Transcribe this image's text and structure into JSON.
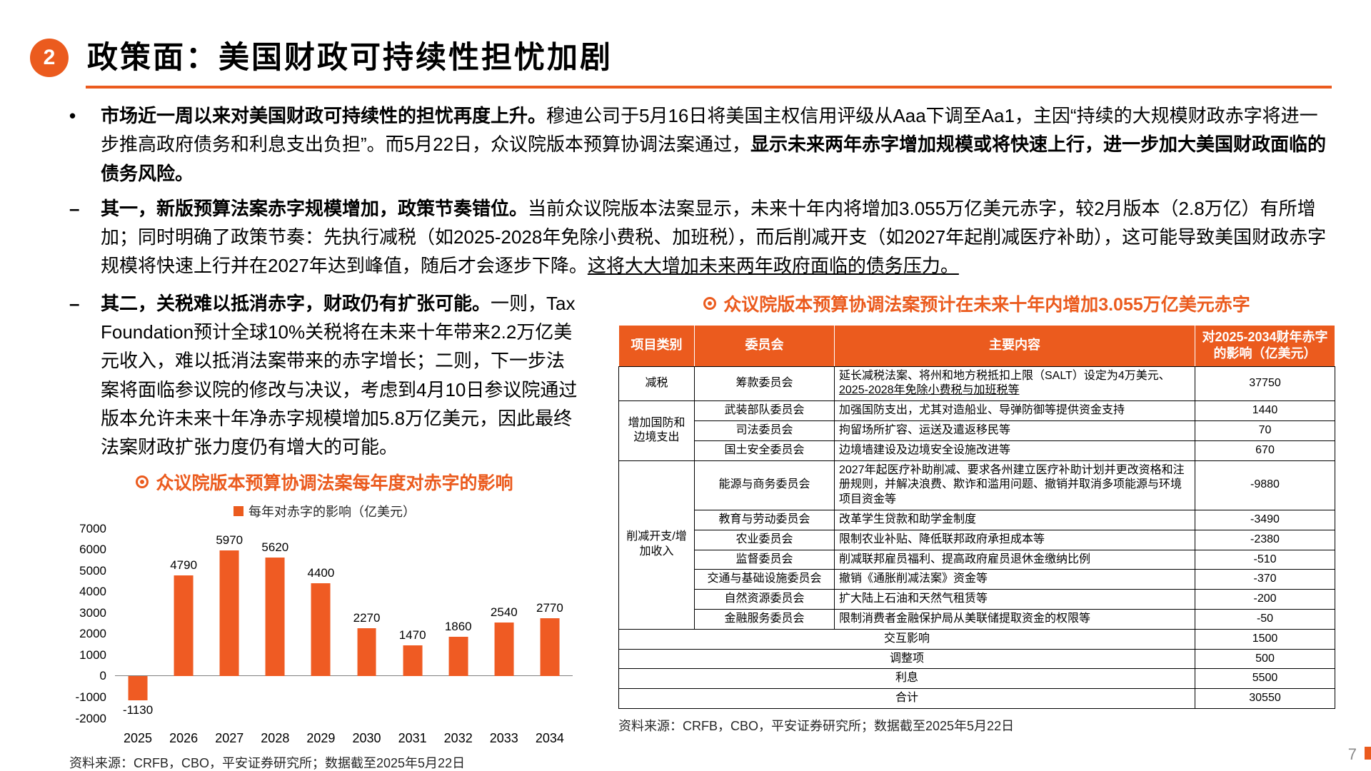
{
  "colors": {
    "accent": "#EB5B1E",
    "bar": "#EF5B23",
    "table_header_bg": "#EB5B1E"
  },
  "page_number": "7",
  "markers": {
    "bullet": "•",
    "dash": "–"
  },
  "header": {
    "badge": "2",
    "title": "政策面：美国财政可持续性担忧加剧"
  },
  "lead": {
    "bold1": "市场近一周以来对美国财政可持续性的担忧再度上升。",
    "text1": "穆迪公司于5月16日将美国主权信用评级从Aaa下调至Aa1，主因“持续的大规模财政赤字将进一步推高政府债务和利息支出负担”。而5月22日，众议院版本预算协调法案通过，",
    "bold2": "显示未来两年赤字增加规模或将快速上行，进一步加大美国财政面临的债务风险。"
  },
  "point1": {
    "bold": "其一，新版预算法案赤字规模增加，政策节奏错位。",
    "text": "当前众议院版本法案显示，未来十年内将增加3.055万亿美元赤字，较2月版本（2.8万亿）有所增加；同时明确了政策节奏：先执行减税（如2025-2028年免除小费税、加班税），而后削减开支（如2027年起削减医疗补助），这可能导致美国财政赤字规模将快速上行并在2027年达到峰值，随后才会逐步下降。",
    "underline": "这将大大增加未来两年政府面临的债务压力。"
  },
  "point2": {
    "bold": "其二，关税难以抵消赤字，财政仍有扩张可能。",
    "text": "一则，Tax Foundation预计全球10%关税将在未来十年带来2.2万亿美元收入，难以抵消法案带来的赤字增长；二则，下一步法案将面临参议院的修改与决议，考虑到4月10日参议院通过版本允许未来十年净赤字规模增加5.8万亿美元，因此最终法案财政扩张力度仍有增大的可能。"
  },
  "chart_data": {
    "type": "bar",
    "title": "众议院版本预算协调法案每年度对赤字的影响",
    "legend": "每年对赤字的影响（亿美元）",
    "categories": [
      "2025",
      "2026",
      "2027",
      "2028",
      "2029",
      "2030",
      "2031",
      "2032",
      "2033",
      "2034"
    ],
    "values": [
      -1130,
      4790,
      5970,
      5620,
      4400,
      2270,
      1470,
      1860,
      2540,
      2770
    ],
    "ylim": [
      -2000,
      7000
    ],
    "ytick_step": 1000,
    "grid": false,
    "legend_position": "top",
    "bar_color": "#EF5B23"
  },
  "sources": {
    "chart": "资料来源：CRFB，CBO，平安证券研究所；数据截至2025年5月22日",
    "table": "资料来源：CRFB，CBO，平安证券研究所；数据截至2025年5月22日"
  },
  "table": {
    "caption": "众议院版本预算协调法案预计在未来十年内增加3.055万亿美元赤字",
    "headers": [
      "项目类别",
      "委员会",
      "主要内容",
      "对2025-2034财年赤字的影响（亿美元）"
    ],
    "groups": [
      {
        "category": "减税",
        "rows": [
          {
            "committee": "筹款委员会",
            "content": "延长减税法案、将州和地方税抵扣上限（SALT）设定为4万美元、",
            "content_u": "2025-2028年免除小费税与加班税等",
            "value": "37750"
          }
        ]
      },
      {
        "category": "增加国防和边境支出",
        "rows": [
          {
            "committee": "武装部队委员会",
            "content": "加强国防支出，尤其对造船业、导弹防御等提供资金支持",
            "value": "1440"
          },
          {
            "committee": "司法委员会",
            "content": "拘留场所扩容、运送及遣返移民等",
            "value": "70"
          },
          {
            "committee": "国土安全委员会",
            "content": "边境墙建设及边境安全设施改进等",
            "value": "670"
          }
        ]
      },
      {
        "category": "削减开支/增加收入",
        "rows": [
          {
            "committee": "能源与商务委员会",
            "content": "2027年起医疗补助削减、要求各州建立医疗补助计划并更改资格和注册规则，并解决浪费、欺诈和滥用问题、撤销并取消多项能源与环境项目资金等",
            "value": "-9880"
          },
          {
            "committee": "教育与劳动委员会",
            "content": "改革学生贷款和助学金制度",
            "value": "-3490"
          },
          {
            "committee": "农业委员会",
            "content": "限制农业补贴、降低联邦政府承担成本等",
            "value": "-2380"
          },
          {
            "committee": "监督委员会",
            "content": "削减联邦雇员福利、提高政府雇员退休金缴纳比例",
            "value": "-510"
          },
          {
            "committee": "交通与基础设施委员会",
            "content": "撤销《通胀削减法案》资金等",
            "value": "-370"
          },
          {
            "committee": "自然资源委员会",
            "content": "扩大陆上石油和天然气租赁等",
            "value": "-200"
          },
          {
            "committee": "金融服务委员会",
            "content": "限制消费者金融保护局从美联储提取资金的权限等",
            "value": "-50"
          }
        ]
      }
    ],
    "summary_rows": [
      {
        "label": "交互影响",
        "value": "1500"
      },
      {
        "label": "调整项",
        "value": "500"
      },
      {
        "label": "利息",
        "value": "5500"
      },
      {
        "label": "合计",
        "value": "30550"
      }
    ]
  }
}
